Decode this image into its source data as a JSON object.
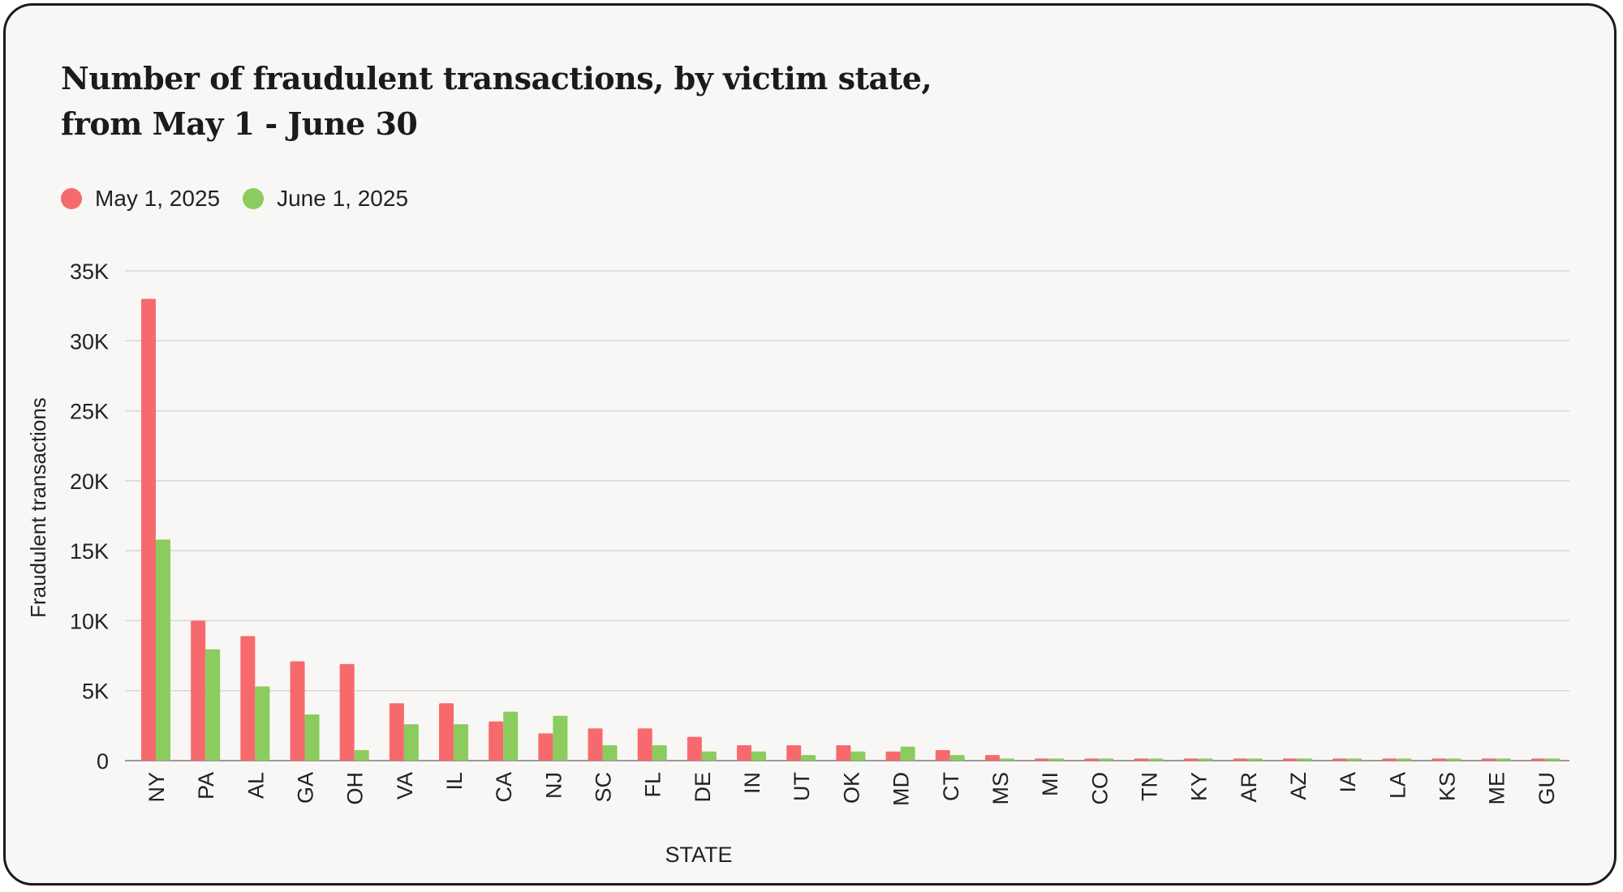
{
  "chart_data": {
    "type": "bar",
    "title_lines": [
      "Number of fraudulent transactions, by victim state,",
      "from May 1 - June 30"
    ],
    "xlabel": "STATE",
    "ylabel": "Fraudulent transactions",
    "ylim": [
      0,
      35000
    ],
    "yticks": [
      0,
      5000,
      10000,
      15000,
      20000,
      25000,
      30000,
      35000
    ],
    "ytick_labels": [
      "0",
      "5K",
      "10K",
      "15K",
      "20K",
      "25K",
      "30K",
      "35K"
    ],
    "grid": true,
    "legend_position": "top-left",
    "categories": [
      "NY",
      "PA",
      "AL",
      "GA",
      "OH",
      "VA",
      "IL",
      "CA",
      "NJ",
      "SC",
      "FL",
      "DE",
      "IN",
      "UT",
      "OK",
      "MD",
      "CT",
      "MS",
      "MI",
      "CO",
      "TN",
      "KY",
      "AR",
      "AZ",
      "IA",
      "LA",
      "KS",
      "ME",
      "GU"
    ],
    "series": [
      {
        "name": "May 1, 2025",
        "color": "#f66a6e",
        "values": [
          33000,
          10000,
          8900,
          7100,
          6900,
          4100,
          4100,
          2800,
          1950,
          2300,
          2300,
          1700,
          1100,
          1100,
          1100,
          650,
          750,
          400,
          150,
          150,
          150,
          150,
          150,
          150,
          150,
          150,
          150,
          150,
          150
        ]
      },
      {
        "name": "June 1, 2025",
        "color": "#8ccb5e",
        "values": [
          15800,
          7950,
          5300,
          3300,
          750,
          2600,
          2600,
          3500,
          3200,
          1100,
          1100,
          650,
          650,
          400,
          650,
          1000,
          400,
          150,
          150,
          150,
          150,
          150,
          150,
          150,
          150,
          150,
          150,
          150,
          150
        ]
      }
    ]
  }
}
